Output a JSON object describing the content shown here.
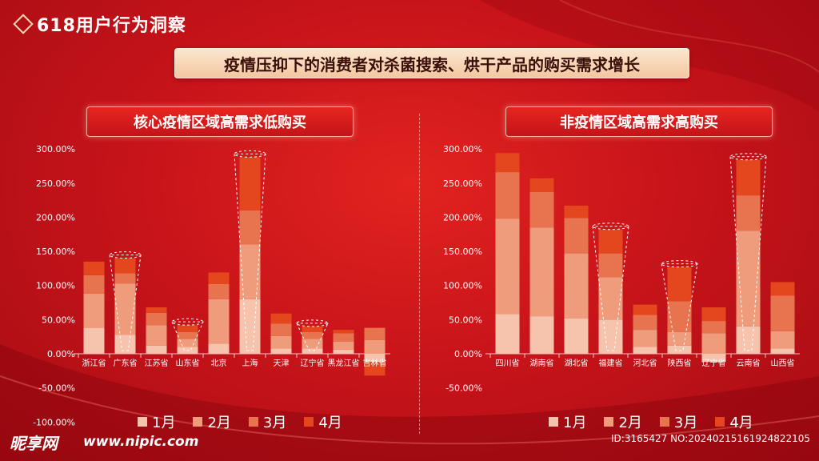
{
  "header": {
    "title": "618用户行为洞察"
  },
  "banner": {
    "text": "疫情压抑下的消费者对杀菌搜索、烘干产品的购买需求增长"
  },
  "colors": {
    "month1": "#f6c3ad",
    "month2": "#ef9c7c",
    "month3": "#e8744f",
    "month4": "#e4461e"
  },
  "legend": [
    "1月",
    "2月",
    "3月",
    "4月"
  ],
  "footer": {
    "logo": "昵享网",
    "url": "www.nipic.com",
    "id": "ID:3165427 NO:20240215161924822105"
  },
  "chart_data": [
    {
      "type": "bar",
      "stacked": true,
      "title": "核心疫情区域高需求低购买",
      "categories": [
        "浙江省",
        "广东省",
        "江苏省",
        "山东省",
        "北京",
        "上海",
        "天津",
        "辽宁省",
        "黑龙江省",
        "吉林省"
      ],
      "yticks": [
        "300.00%",
        "250.00%",
        "200.00%",
        "150.00%",
        "100.00%",
        "50.00%",
        "0.00%",
        "-50.00%",
        "-100.00%"
      ],
      "ylim": [
        -100,
        300
      ],
      "series": [
        {
          "name": "1月",
          "values": [
            38,
            28,
            12,
            10,
            15,
            80,
            8,
            8,
            6,
            -12
          ]
        },
        {
          "name": "2月",
          "values": [
            50,
            75,
            30,
            12,
            65,
            80,
            18,
            14,
            12,
            20
          ]
        },
        {
          "name": "3月",
          "values": [
            27,
            15,
            18,
            10,
            22,
            50,
            18,
            10,
            12,
            18
          ]
        },
        {
          "name": "4月",
          "values": [
            20,
            22,
            8,
            10,
            17,
            78,
            15,
            8,
            5,
            -20
          ]
        }
      ],
      "highlight_cups": [
        "广东省",
        "山东省",
        "上海",
        "辽宁省"
      ]
    },
    {
      "type": "bar",
      "stacked": true,
      "title": "非疫情区域高需求高购买",
      "categories": [
        "四川省",
        "湖南省",
        "湖北省",
        "福建省",
        "河北省",
        "陕西省",
        "辽宁省",
        "云南省",
        "山西省"
      ],
      "yticks": [
        "300.00%",
        "250.00%",
        "200.00%",
        "150.00%",
        "100.00%",
        "50.00%",
        "0.00%",
        "-50.00%"
      ],
      "ylim": [
        -50,
        300
      ],
      "series": [
        {
          "name": "1月",
          "values": [
            58,
            55,
            52,
            50,
            10,
            12,
            -12,
            40,
            8
          ]
        },
        {
          "name": "2月",
          "values": [
            140,
            130,
            95,
            62,
            25,
            20,
            30,
            140,
            25
          ]
        },
        {
          "name": "3月",
          "values": [
            68,
            52,
            52,
            35,
            22,
            45,
            18,
            52,
            52
          ]
        },
        {
          "name": "4月",
          "values": [
            28,
            20,
            18,
            35,
            15,
            50,
            20,
            52,
            20
          ]
        }
      ],
      "highlight_cups": [
        "福建省",
        "陕西省",
        "云南省"
      ]
    }
  ]
}
